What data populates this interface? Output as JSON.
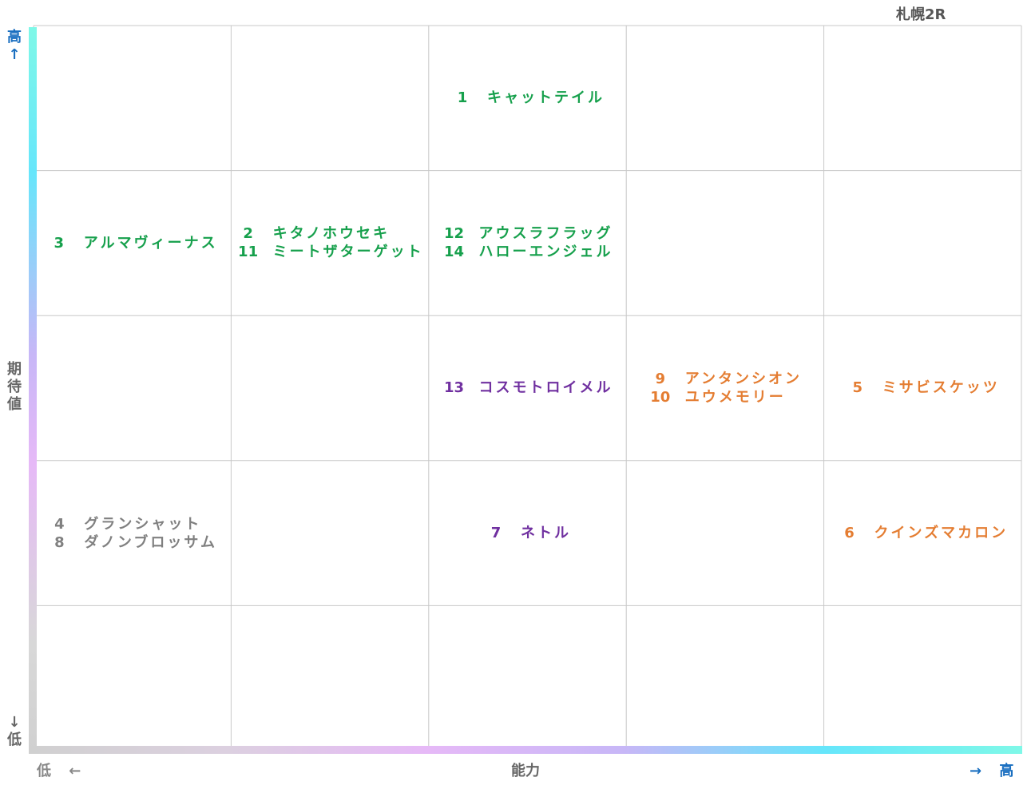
{
  "title": "札幌2R",
  "y_axis": {
    "label": "期待値",
    "high": "高↑",
    "low": "↓低"
  },
  "x_axis": {
    "label": "能力",
    "low": "低 ←",
    "high": "→ 高"
  },
  "grid": {
    "rows": 5,
    "cols": 5
  },
  "cells": [
    {
      "row": 0,
      "col": 2,
      "color": "#16a04c",
      "entries": [
        {
          "number": 1,
          "name": "キャットテイル"
        }
      ]
    },
    {
      "row": 1,
      "col": 0,
      "color": "#16a04c",
      "entries": [
        {
          "number": 3,
          "name": "アルマヴィーナス"
        }
      ]
    },
    {
      "row": 1,
      "col": 1,
      "color": "#16a04c",
      "entries": [
        {
          "number": 2,
          "name": "キタノホウセキ"
        },
        {
          "number": 11,
          "name": "ミートザターゲット"
        }
      ]
    },
    {
      "row": 1,
      "col": 2,
      "color": "#16a04c",
      "entries": [
        {
          "number": 12,
          "name": "アウスラフラッグ"
        },
        {
          "number": 14,
          "name": "ハローエンジェル"
        }
      ]
    },
    {
      "row": 2,
      "col": 2,
      "color": "#7030a0",
      "entries": [
        {
          "number": 13,
          "name": "コスモトロイメル"
        }
      ]
    },
    {
      "row": 2,
      "col": 3,
      "color": "#e47d32",
      "entries": [
        {
          "number": 9,
          "name": "アンタンシオン"
        },
        {
          "number": 10,
          "name": "ユウメモリー"
        }
      ]
    },
    {
      "row": 2,
      "col": 4,
      "color": "#e47d32",
      "entries": [
        {
          "number": 5,
          "name": "ミサビスケッツ"
        }
      ]
    },
    {
      "row": 3,
      "col": 0,
      "color": "#808080",
      "entries": [
        {
          "number": 4,
          "name": "グランシャット"
        },
        {
          "number": 8,
          "name": "ダノンブロッサム"
        }
      ]
    },
    {
      "row": 3,
      "col": 2,
      "color": "#7030a0",
      "entries": [
        {
          "number": 7,
          "name": "ネトル"
        }
      ]
    },
    {
      "row": 3,
      "col": 4,
      "color": "#e47d32",
      "entries": [
        {
          "number": 6,
          "name": "クインズマカロン"
        }
      ]
    }
  ]
}
